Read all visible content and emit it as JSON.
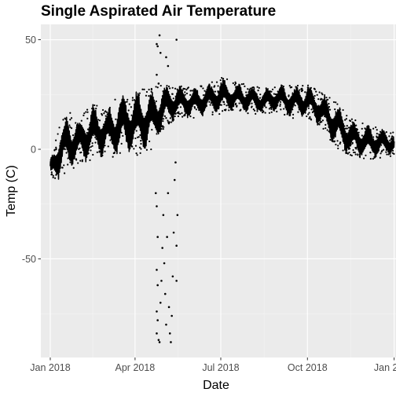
{
  "chart_data": {
    "type": "scatter",
    "title": "Single Aspirated Air Temperature",
    "xlabel": "Date",
    "ylabel": "Temp (C)",
    "x_type": "date",
    "xlim": [
      "2017-12-22",
      "2019-01-03"
    ],
    "ylim": [
      -95,
      57
    ],
    "x_ticks": [
      {
        "date": "2018-01-01",
        "label": "Jan 2018"
      },
      {
        "date": "2018-04-01",
        "label": "Apr 2018"
      },
      {
        "date": "2018-07-01",
        "label": "Jul 2018"
      },
      {
        "date": "2018-10-01",
        "label": "Oct 2018"
      },
      {
        "date": "2019-01-01",
        "label": "Jan 2019"
      }
    ],
    "y_ticks": [
      {
        "value": 50,
        "label": "50"
      },
      {
        "value": 0,
        "label": "0"
      },
      {
        "value": -50,
        "label": "-50"
      }
    ],
    "grid": true,
    "point_color": "#000000",
    "envelope": {
      "description_dates": [
        "2018-01-01",
        "2018-01-10",
        "2018-01-20",
        "2018-02-01",
        "2018-02-15",
        "2018-03-01",
        "2018-03-15",
        "2018-04-01",
        "2018-04-15",
        "2018-05-01",
        "2018-05-15",
        "2018-06-01",
        "2018-06-15",
        "2018-07-01",
        "2018-07-15",
        "2018-08-01",
        "2018-08-15",
        "2018-09-01",
        "2018-09-15",
        "2018-10-01",
        "2018-10-15",
        "2018-11-01",
        "2018-11-15",
        "2018-12-01",
        "2018-12-15",
        "2019-01-01"
      ],
      "low": [
        -14,
        -14,
        -10,
        -8,
        -5,
        -3,
        -4,
        -3,
        -2,
        8,
        14,
        14,
        15,
        16,
        17,
        16,
        16,
        17,
        14,
        14,
        10,
        0,
        -3,
        -5,
        -4,
        -3
      ],
      "high": [
        -5,
        10,
        18,
        14,
        22,
        18,
        26,
        28,
        28,
        30,
        30,
        28,
        30,
        33,
        31,
        30,
        28,
        30,
        29,
        30,
        26,
        22,
        14,
        12,
        10,
        9
      ]
    },
    "outlier_points": [
      {
        "x": "2018-04-24",
        "y": 48
      },
      {
        "x": "2018-04-25",
        "y": 47
      },
      {
        "x": "2018-04-27",
        "y": 52
      },
      {
        "x": "2018-04-28",
        "y": 44
      },
      {
        "x": "2018-04-24",
        "y": 34
      },
      {
        "x": "2018-04-26",
        "y": 30
      },
      {
        "x": "2018-05-04",
        "y": 42
      },
      {
        "x": "2018-05-06",
        "y": 38
      },
      {
        "x": "2018-05-15",
        "y": 50
      },
      {
        "x": "2018-04-23",
        "y": -20
      },
      {
        "x": "2018-04-24",
        "y": -26
      },
      {
        "x": "2018-04-25",
        "y": -40
      },
      {
        "x": "2018-04-24",
        "y": -55
      },
      {
        "x": "2018-04-25",
        "y": -62
      },
      {
        "x": "2018-04-24",
        "y": -74
      },
      {
        "x": "2018-04-25",
        "y": -78
      },
      {
        "x": "2018-04-24",
        "y": -84
      },
      {
        "x": "2018-04-26",
        "y": -87
      },
      {
        "x": "2018-04-27",
        "y": -88
      },
      {
        "x": "2018-04-28",
        "y": -70
      },
      {
        "x": "2018-04-29",
        "y": -60
      },
      {
        "x": "2018-04-30",
        "y": -45
      },
      {
        "x": "2018-05-01",
        "y": -30
      },
      {
        "x": "2018-05-02",
        "y": -52
      },
      {
        "x": "2018-05-03",
        "y": -66
      },
      {
        "x": "2018-05-04",
        "y": -80
      },
      {
        "x": "2018-05-05",
        "y": -40
      },
      {
        "x": "2018-05-06",
        "y": -20
      },
      {
        "x": "2018-05-07",
        "y": -72
      },
      {
        "x": "2018-05-08",
        "y": -84
      },
      {
        "x": "2018-05-09",
        "y": -88
      },
      {
        "x": "2018-05-10",
        "y": -76
      },
      {
        "x": "2018-05-11",
        "y": -58
      },
      {
        "x": "2018-05-12",
        "y": -38
      },
      {
        "x": "2018-05-13",
        "y": -14
      },
      {
        "x": "2018-05-14",
        "y": -6
      },
      {
        "x": "2018-05-15",
        "y": -60
      },
      {
        "x": "2018-05-16",
        "y": -30
      },
      {
        "x": "2018-05-15",
        "y": -44
      }
    ]
  }
}
